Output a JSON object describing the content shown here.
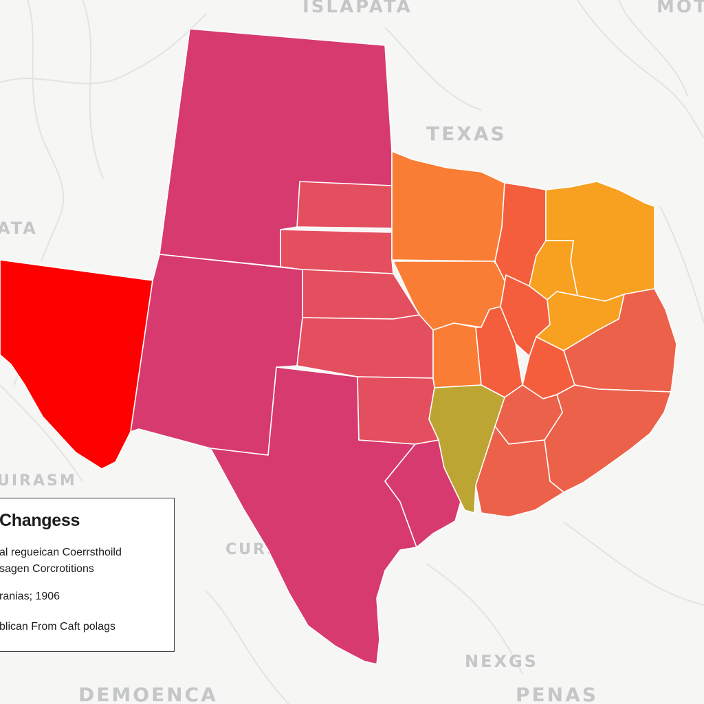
{
  "map": {
    "background_labels": [
      {
        "id": "islapata",
        "text": "ISLAPATA"
      },
      {
        "id": "moti",
        "text": "MOTI"
      },
      {
        "id": "texas",
        "text": "TEXAS"
      },
      {
        "id": "ata",
        "text": "ATA"
      },
      {
        "id": "uirasm",
        "text": "UIRASM"
      },
      {
        "id": "curi",
        "text": "CURI"
      },
      {
        "id": "nexgs",
        "text": "NEXGS"
      },
      {
        "id": "demoenca",
        "text": "DEMOENCA"
      },
      {
        "id": "penas",
        "text": "PENAS"
      }
    ],
    "colors": {
      "magenta": "#d63a6e",
      "rose": "#e44f5f",
      "red": "#ff0000",
      "orange": "#f97d35",
      "amber": "#f8a01f",
      "red_orange": "#f45e3c",
      "coral": "#ec6149",
      "olive": "#bca532",
      "background": "#f6f6f4"
    }
  },
  "legend": {
    "title": "Changess",
    "lines": [
      "al reguеican Coerrsthoild",
      "sagen Corcrotitions",
      "ranias; 1906",
      "blican From Caft polags"
    ]
  }
}
